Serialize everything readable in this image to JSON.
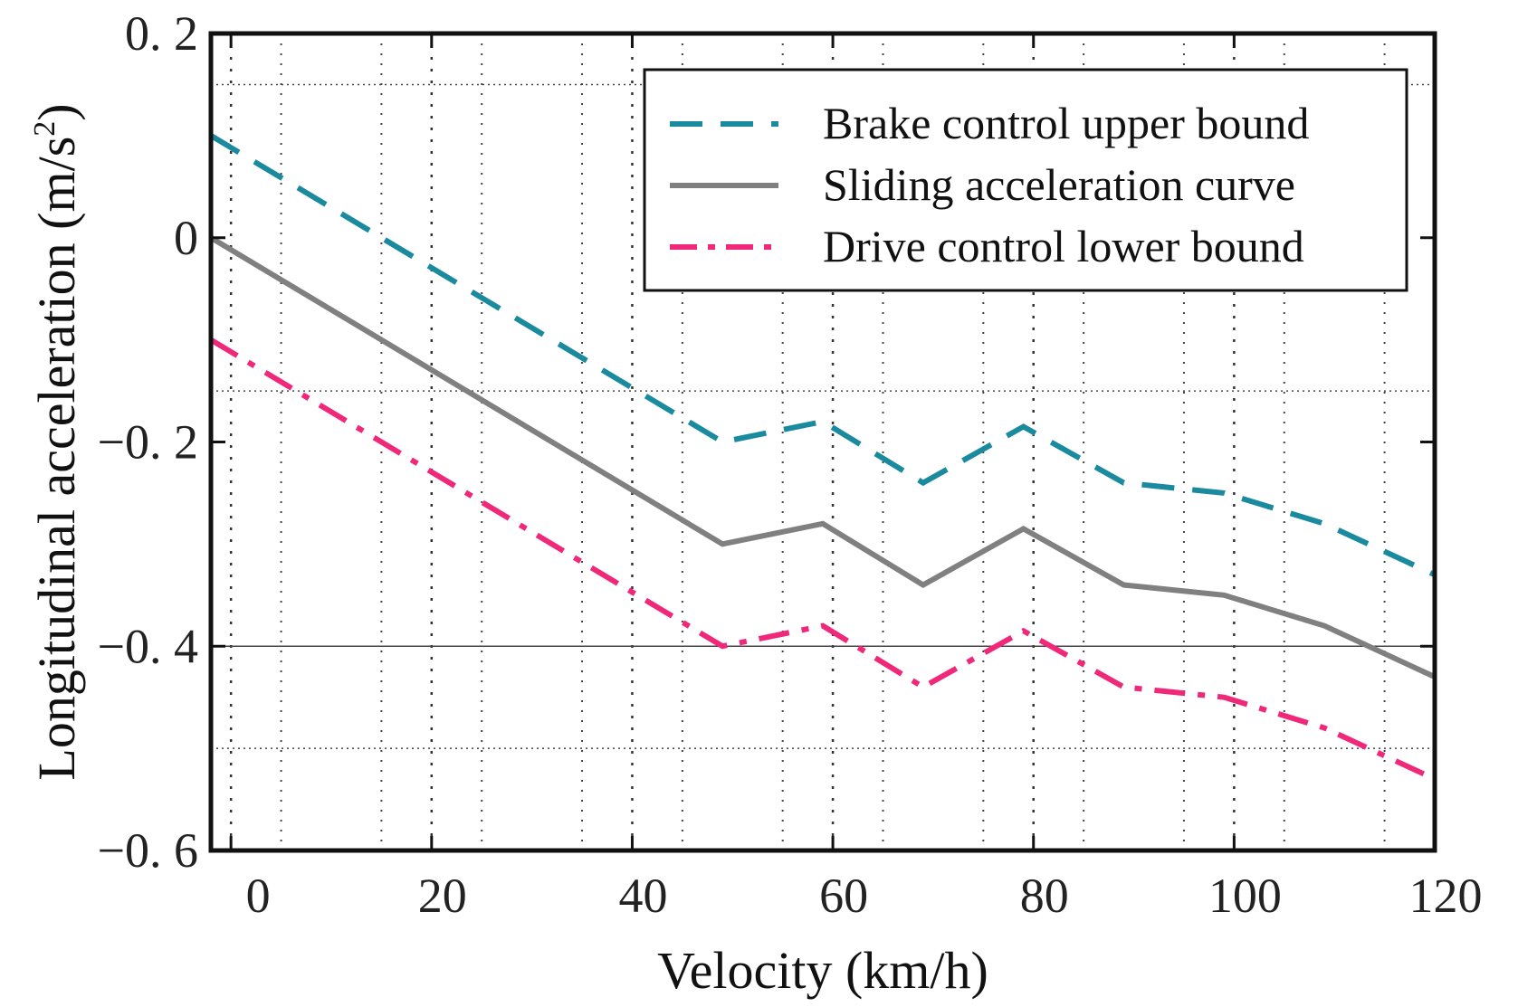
{
  "chart_data": {
    "type": "line",
    "title": "",
    "xlabel": "Velocity (km/h)",
    "ylabel_main": "Longitudinal acceleration (m/s",
    "ylabel_sup": "2",
    "ylabel_close": ")",
    "xlim": [
      -2,
      120
    ],
    "ylim": [
      -0.6,
      0.2
    ],
    "xticks": [
      0,
      20,
      40,
      60,
      80,
      100,
      120
    ],
    "xtick_labels": [
      "0",
      "20",
      "40",
      "60",
      "80",
      "100",
      "120"
    ],
    "yticks": [
      0.2,
      0,
      -0.2,
      -0.4,
      -0.6
    ],
    "ytick_labels": [
      "0. 2",
      "0",
      "−0. 2",
      "−0. 4",
      "−0. 6"
    ],
    "legend_position": "top-right",
    "x": [
      -2,
      49,
      59,
      69,
      79,
      89,
      99,
      109,
      120
    ],
    "series": [
      {
        "name": "Brake control upper bound",
        "style": "dashed",
        "color": "#1a8a9e",
        "values": [
          0.1,
          -0.2,
          -0.18,
          -0.24,
          -0.185,
          -0.24,
          -0.25,
          -0.28,
          -0.33
        ]
      },
      {
        "name": "Sliding acceleration curve",
        "style": "solid",
        "color": "#808080",
        "values": [
          0.0,
          -0.3,
          -0.28,
          -0.34,
          -0.285,
          -0.34,
          -0.35,
          -0.38,
          -0.43
        ]
      },
      {
        "name": "Drive control lower bound",
        "style": "dashdot",
        "color": "#f0287a",
        "values": [
          -0.1,
          -0.4,
          -0.38,
          -0.44,
          -0.385,
          -0.44,
          -0.45,
          -0.48,
          -0.53
        ]
      }
    ]
  }
}
